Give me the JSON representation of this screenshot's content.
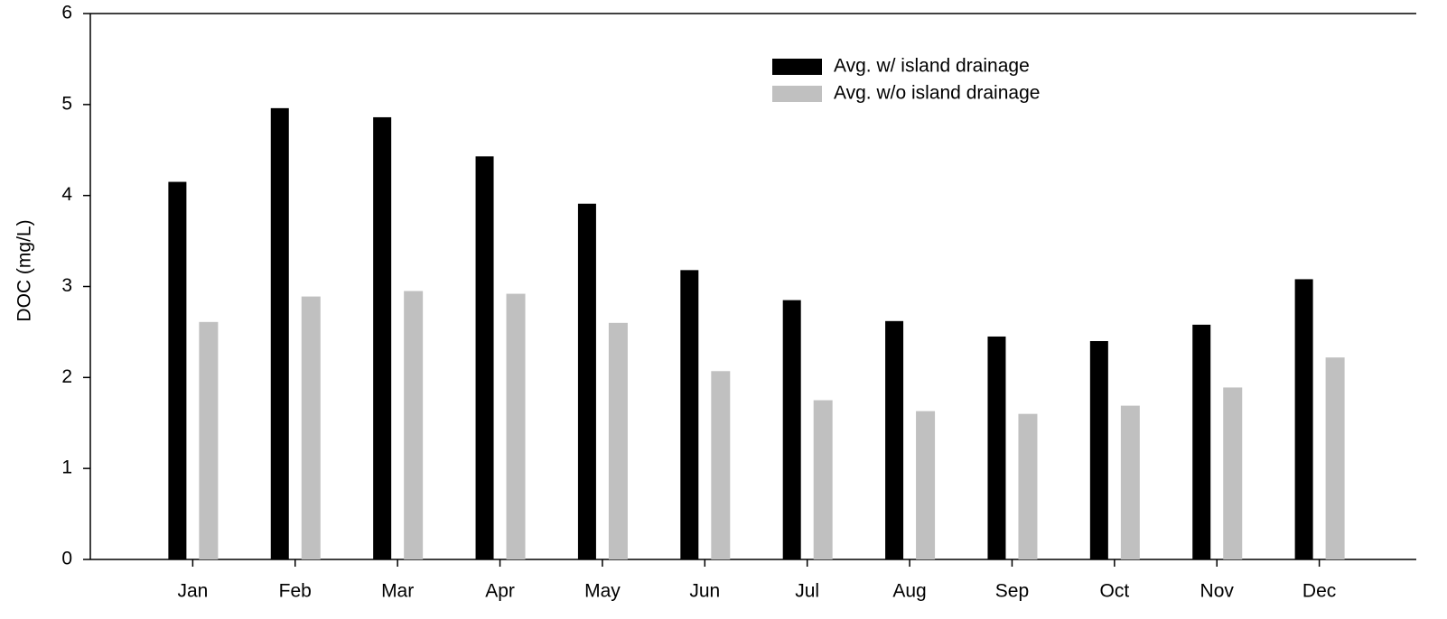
{
  "chart_data": {
    "type": "bar",
    "y_label": "DOC (mg/L)",
    "categories": [
      "Jan",
      "Feb",
      "Mar",
      "Apr",
      "May",
      "Jun",
      "Jul",
      "Aug",
      "Sep",
      "Oct",
      "Nov",
      "Dec"
    ],
    "series": [
      {
        "name": "Avg. w/ island drainage",
        "color": "#000000",
        "values": [
          4.15,
          4.96,
          4.86,
          4.43,
          3.91,
          3.18,
          2.85,
          2.62,
          2.45,
          2.4,
          2.58,
          3.08
        ]
      },
      {
        "name": "Avg. w/o island drainage",
        "color": "#c0c0c0",
        "values": [
          2.61,
          2.89,
          2.95,
          2.92,
          2.6,
          2.07,
          1.75,
          1.63,
          1.6,
          1.69,
          1.89,
          2.22
        ]
      }
    ],
    "ylim": [
      0,
      6
    ],
    "yticks": [
      0,
      1,
      2,
      3,
      4,
      5,
      6
    ]
  }
}
